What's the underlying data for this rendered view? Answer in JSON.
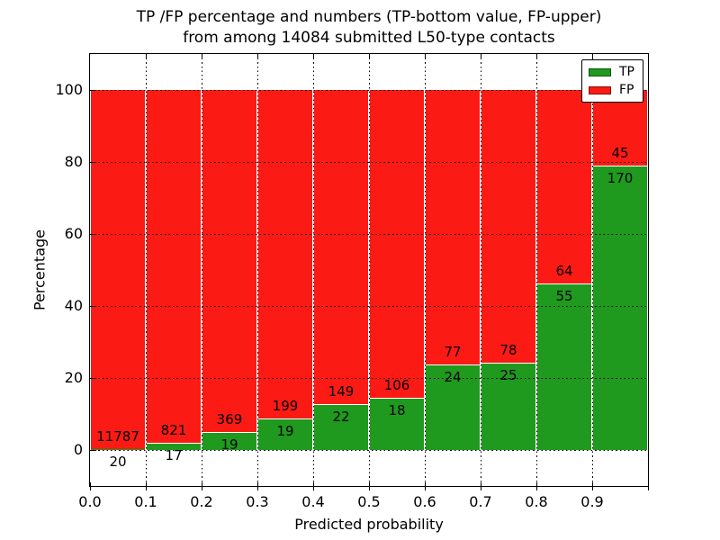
{
  "figure": {
    "title_line1": "TP /FP percentage and numbers (TP-bottom value, FP-upper)",
    "title_line2": "from among 14084 submitted L50-type contacts",
    "xlabel": "Predicted probability",
    "ylabel": "Percentage"
  },
  "colors": {
    "tp": "#1f9a1f",
    "fp": "#fc1a15",
    "bar_edge": "#ffffff",
    "grid": "#000000",
    "background": "#ffffff"
  },
  "legend": {
    "position": "upper right",
    "items": [
      {
        "label": "TP",
        "color": "#1f9a1f"
      },
      {
        "label": "FP",
        "color": "#fc1a15"
      }
    ]
  },
  "chart_data": {
    "type": "bar",
    "stacked": true,
    "normalization": "each bar scaled to 100% of bin total; bar labels show raw counts (TP bottom, FP upper)",
    "title": "TP /FP percentage and numbers (TP-bottom value, FP-upper) from among 14084 submitted L50-type contacts",
    "xlabel": "Predicted probability",
    "ylabel": "Percentage",
    "xlim": [
      0.0,
      1.0
    ],
    "ylim": [
      -10,
      110
    ],
    "grid": "dotted, x at 0.1 steps, y at 0/20/40/60/80/100",
    "legend_position": "upper right",
    "xtick_labels": [
      "0.0",
      "0.1",
      "0.2",
      "0.3",
      "0.4",
      "0.5",
      "0.6",
      "0.7",
      "0.8",
      "0.9"
    ],
    "ytick_values": [
      0,
      20,
      40,
      60,
      80,
      100
    ],
    "ytick_labels": [
      "0",
      "20",
      "40",
      "60",
      "80",
      "100"
    ],
    "categories": [
      "0.0-0.1",
      "0.1-0.2",
      "0.2-0.3",
      "0.3-0.4",
      "0.4-0.5",
      "0.5-0.6",
      "0.6-0.7",
      "0.7-0.8",
      "0.8-0.9",
      "0.9-1.0"
    ],
    "series": [
      {
        "name": "TP",
        "color": "#1f9a1f",
        "counts": [
          20,
          17,
          19,
          19,
          22,
          18,
          24,
          25,
          55,
          170
        ]
      },
      {
        "name": "FP",
        "color": "#fc1a15",
        "counts": [
          11787,
          821,
          369,
          199,
          149,
          106,
          77,
          78,
          64,
          45
        ]
      }
    ],
    "tp_percent_of_bin": [
      0.17,
      2.03,
      4.9,
      8.72,
      12.87,
      14.52,
      23.76,
      24.27,
      46.22,
      79.07
    ],
    "total_submitted_contacts": 14084
  }
}
